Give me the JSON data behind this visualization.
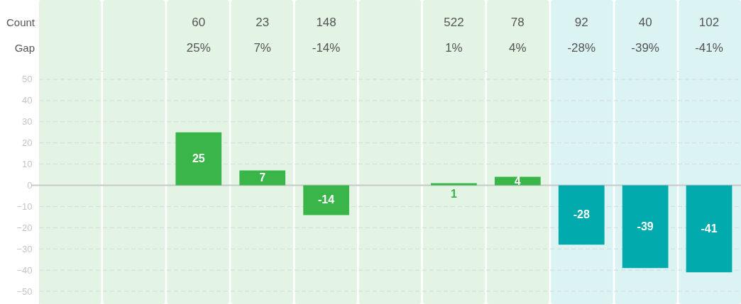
{
  "chart_data": {
    "type": "bar",
    "categories": [
      null,
      null,
      null,
      null,
      null,
      null,
      null,
      null,
      null,
      null,
      null
    ],
    "values": [
      null,
      null,
      25,
      7,
      -14,
      null,
      1,
      4,
      -28,
      -39,
      -41
    ],
    "colors": [
      "#39b54a",
      "#39b54a",
      "#39b54a",
      "#39b54a",
      "#39b54a",
      "#39b54a",
      "#39b54a",
      "#39b54a",
      "#00aaad",
      "#00aaad",
      "#00aaad"
    ],
    "value_labels": [
      null,
      null,
      "25",
      "7",
      "-14",
      null,
      "1",
      "4",
      "-28",
      "-39",
      "-41"
    ],
    "annotations": [
      "Count",
      "Gap",
      "60",
      "25%",
      "23",
      "7%",
      "148",
      "-14%",
      "522",
      "1%",
      "78",
      "4%",
      "92",
      "-28%",
      "40",
      "-39%",
      "102",
      "-41%"
    ],
    "ylim": [
      -56,
      54
    ],
    "yticks": [
      -50,
      -40,
      -30,
      -20,
      -10,
      0,
      10,
      20,
      30,
      40,
      50
    ],
    "grid": "y"
  }
}
